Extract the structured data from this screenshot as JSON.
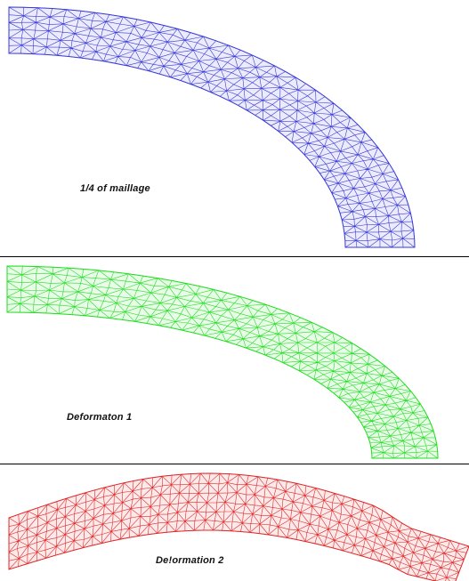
{
  "panels": [
    {
      "caption": "1/4 of maillage",
      "mesh_color": "#3a3ad8"
    },
    {
      "caption": "Deformaton 1",
      "mesh_color": "#22dd22"
    },
    {
      "caption": "De!ormation 2",
      "mesh_color": "#e02828"
    }
  ]
}
